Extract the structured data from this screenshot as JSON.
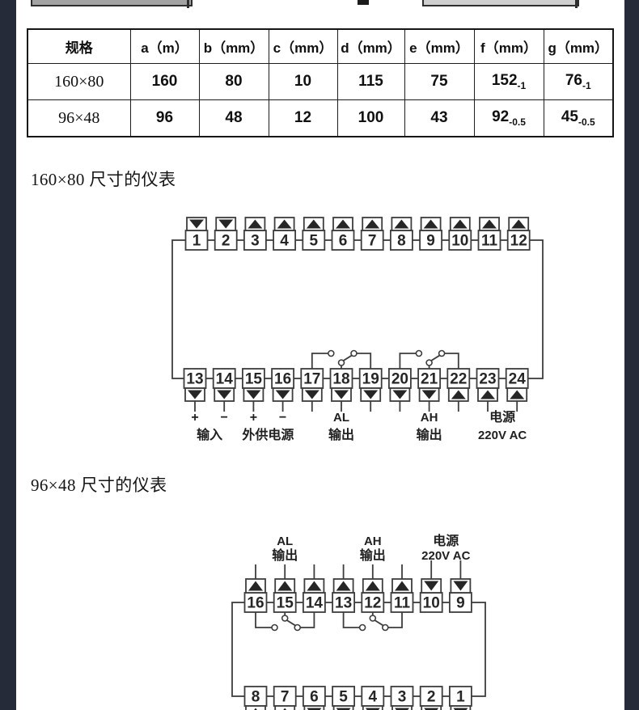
{
  "page": {
    "background": "#ffffff",
    "edge_bar_color": "#252b38",
    "line_color": "#3d3d3d"
  },
  "spec_table": {
    "headers": [
      "规格",
      "a（m）",
      "b（mm）",
      "c（mm）",
      "d（mm）",
      "e（mm）",
      "f（mm）",
      "g（mm）"
    ],
    "rows": [
      [
        "160×80",
        "160",
        "80",
        "10",
        "115",
        "75",
        {
          "v": "152",
          "sub": "-1"
        },
        {
          "v": "76",
          "sub": "-1"
        }
      ],
      [
        "96×48",
        "96",
        "48",
        "12",
        "100",
        "43",
        {
          "v": "92",
          "sub": "-0.5"
        },
        {
          "v": "45",
          "sub": "-0.5"
        }
      ]
    ]
  },
  "sections": [
    {
      "heading": "160×80 尺寸的仪表",
      "diagram": {
        "top_terminals": {
          "numbers": [
            "1",
            "2",
            "3",
            "4",
            "5",
            "6",
            "7",
            "8",
            "9",
            "10",
            "11",
            "12"
          ],
          "arrows": [
            "down",
            "down",
            "up",
            "up",
            "up",
            "up",
            "up",
            "up",
            "up",
            "up",
            "up",
            "up"
          ]
        },
        "bottom_terminals": {
          "numbers": [
            "13",
            "14",
            "15",
            "16",
            "17",
            "18",
            "19",
            "20",
            "21",
            "22",
            "23",
            "24"
          ],
          "arrows": [
            "down",
            "down",
            "down",
            "down",
            "down",
            "down",
            "down",
            "down",
            "down",
            "up",
            "up",
            "up"
          ]
        },
        "labels": {
          "plus1": "+",
          "minus1": "−",
          "plus2": "+",
          "minus2": "−",
          "input": "输入",
          "ext_power": "外供电源",
          "al_line1": "AL",
          "al_line2": "输出",
          "ah_line1": "AH",
          "ah_line2": "输出",
          "power_line1": "电源",
          "power_line2": "220V AC"
        }
      }
    },
    {
      "heading": "96×48 尺寸的仪表",
      "diagram": {
        "top_labels": {
          "al_line1": "AL",
          "al_line2": "输出",
          "ah_line1": "AH",
          "ah_line2": "输出",
          "power_line1": "电源",
          "power_line2": "220V AC"
        },
        "top_terminals": {
          "numbers": [
            "16",
            "15",
            "14",
            "13",
            "12",
            "11",
            "10",
            "9"
          ],
          "arrows": [
            "up",
            "up",
            "up",
            "up",
            "up",
            "up",
            "down",
            "down"
          ]
        },
        "bottom_terminals": {
          "numbers": [
            "8",
            "7",
            "6",
            "5",
            "4",
            "3",
            "2",
            "1"
          ],
          "arrows": [
            "up",
            "up",
            "down",
            "down",
            "down",
            "down",
            "down",
            "down"
          ]
        }
      }
    }
  ]
}
